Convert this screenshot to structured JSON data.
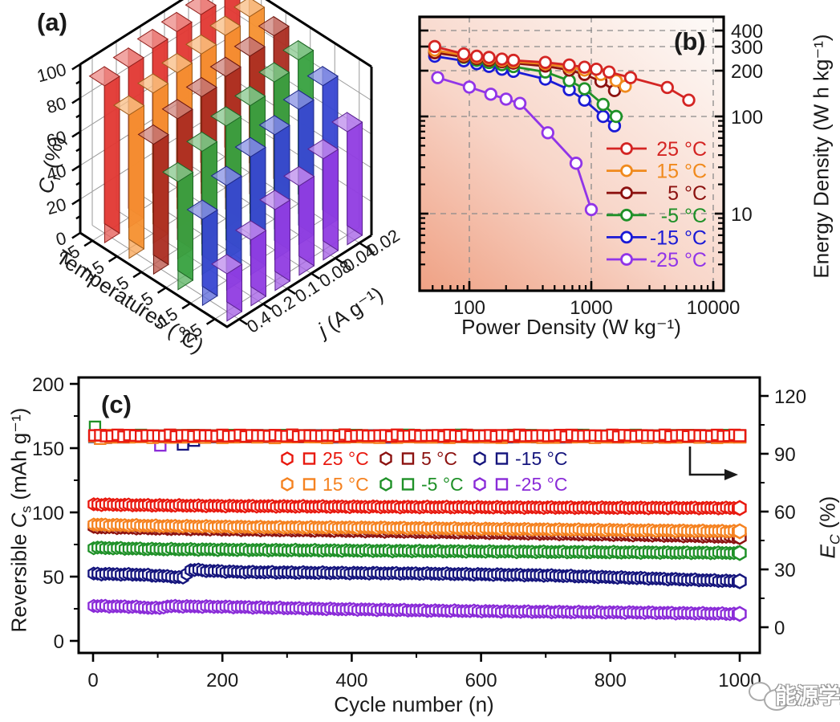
{
  "watermark": {
    "text": "能源学人"
  },
  "chart_data": [
    {
      "id": "a",
      "type": "bar",
      "subtype": "bar3d",
      "label": "(a)",
      "z_axis": {
        "symbol": "C",
        "subscript": "r",
        "unit": " (%)",
        "ticks": [
          0,
          20,
          40,
          60,
          80,
          100
        ],
        "max": 100
      },
      "temp_axis": {
        "title": "Temperatures (°C)",
        "categories": [
          "25",
          "15",
          "5",
          "-5",
          "-15",
          "-25"
        ]
      },
      "j_axis": {
        "italic": "j",
        "rest": " (A g⁻¹)",
        "categories": [
          "0.02",
          "0.04",
          "0.08",
          "0.1",
          "0.2",
          "0.4"
        ]
      },
      "series": [
        {
          "name": "25 °C",
          "color": "#e0302a",
          "values": [
            100,
            99,
            98,
            97,
            95,
            93
          ]
        },
        {
          "name": "15 °C",
          "color": "#f58c28",
          "values": [
            98,
            96,
            94,
            92,
            89,
            85
          ]
        },
        {
          "name": "5 °C",
          "color": "#a82418",
          "values": [
            96,
            93,
            90,
            87,
            83,
            77
          ]
        },
        {
          "name": "-5 °C",
          "color": "#2f9e38",
          "values": [
            91,
            87,
            82,
            79,
            73,
            64
          ]
        },
        {
          "name": "-15 °C",
          "color": "#2f3fd0",
          "values": [
            85,
            80,
            74,
            70,
            62,
            51
          ]
        },
        {
          "name": "-25 °C",
          "color": "#8c35e0",
          "values": [
            67,
            60,
            53,
            48,
            39,
            28
          ]
        }
      ]
    },
    {
      "id": "b",
      "type": "line",
      "label": "(b)",
      "xlabel": "Power Density  (W kg⁻¹)",
      "ylabel": "Energy Density  (W h kg⁻¹)",
      "x_ticks": [
        100,
        1000,
        10000
      ],
      "y_ticks": [
        400,
        300,
        200,
        100,
        10
      ],
      "xlim": [
        39,
        12200
      ],
      "ylim": [
        2.2,
        525
      ],
      "scale": "log-log",
      "grid": "dashed",
      "legend_position": "right-middle",
      "series": [
        {
          "name": "25 °C",
          "color": "#d42523",
          "points": [
            [
              52,
              300
            ],
            [
              90,
              265
            ],
            [
              115,
              255
            ],
            [
              145,
              250
            ],
            [
              185,
              243
            ],
            [
              230,
              238
            ],
            [
              420,
              230
            ],
            [
              660,
              220
            ],
            [
              880,
              212
            ],
            [
              1100,
              205
            ],
            [
              1400,
              196
            ],
            [
              2100,
              180
            ],
            [
              4200,
              155
            ],
            [
              6300,
              128
            ]
          ]
        },
        {
          "name": "15 °C",
          "color": "#f08a1d",
          "points": [
            [
              52,
              282
            ],
            [
              90,
              260
            ],
            [
              115,
              251
            ],
            [
              145,
              245
            ],
            [
              185,
              238
            ],
            [
              230,
              233
            ],
            [
              420,
              224
            ],
            [
              660,
              212
            ],
            [
              880,
              202
            ],
            [
              1200,
              189
            ],
            [
              1600,
              172
            ],
            [
              1900,
              158
            ]
          ]
        },
        {
          "name": "5 °C",
          "color": "#8c1210",
          "points": [
            [
              52,
              270
            ],
            [
              90,
              253
            ],
            [
              115,
              245
            ],
            [
              145,
              238
            ],
            [
              185,
              232
            ],
            [
              230,
              227
            ],
            [
              420,
              216
            ],
            [
              660,
              202
            ],
            [
              880,
              189
            ],
            [
              1200,
              170
            ],
            [
              1550,
              148
            ]
          ]
        },
        {
          "name": "-5 °C",
          "color": "#1f9128",
          "points": [
            [
              52,
              276
            ],
            [
              90,
              250
            ],
            [
              115,
              238
            ],
            [
              145,
              229
            ],
            [
              185,
              221
            ],
            [
              230,
              214
            ],
            [
              420,
              196
            ],
            [
              660,
              172
            ],
            [
              880,
              152
            ],
            [
              1250,
              120
            ],
            [
              1600,
              100
            ]
          ]
        },
        {
          "name": "-15 °C",
          "color": "#1a1ad6",
          "points": [
            [
              52,
              255
            ],
            [
              90,
              236
            ],
            [
              115,
              225
            ],
            [
              145,
              215
            ],
            [
              185,
              205
            ],
            [
              230,
              198
            ],
            [
              420,
              176
            ],
            [
              660,
              150
            ],
            [
              880,
              128
            ],
            [
              1250,
              100
            ],
            [
              1550,
              80
            ]
          ]
        },
        {
          "name": "-25 °C",
          "color": "#9135e8",
          "points": [
            [
              55,
              180
            ],
            [
              100,
              156
            ],
            [
              150,
              140
            ],
            [
              200,
              130
            ],
            [
              260,
              122
            ],
            [
              440,
              68
            ],
            [
              750,
              33
            ],
            [
              1000,
              11
            ]
          ]
        }
      ]
    },
    {
      "id": "c",
      "type": "scatter",
      "label": "(c)",
      "xlabel": "Cycle number (n)",
      "x_ticks": [
        0,
        200,
        400,
        600,
        800,
        1000
      ],
      "xlim": [
        0,
        1000
      ],
      "left_axis": {
        "pre": "Reversible ",
        "symbol": "C",
        "subscript": "s",
        "unit": " (mAh g⁻¹)",
        "ticks": [
          0,
          50,
          100,
          150,
          200
        ],
        "max": 200
      },
      "right_axis": {
        "symbol": "E",
        "subscript": "C",
        "unit": " (%)",
        "ticks": [
          0,
          30,
          60,
          90,
          120
        ],
        "max": 120
      },
      "series": [
        {
          "name": "25 °C",
          "color": "#e8190f",
          "capacity": [
            [
              1,
              106.2
            ],
            [
              80,
              105.6
            ],
            [
              200,
              105
            ],
            [
              400,
              104.4
            ],
            [
              600,
              104
            ],
            [
              800,
              103.6
            ],
            [
              1000,
              103.4
            ]
          ],
          "efficiency": 99.4,
          "eff_outliers": []
        },
        {
          "name": "15 °C",
          "color": "#f58220",
          "capacity": [
            [
              1,
              90.5
            ],
            [
              100,
              89.5
            ],
            [
              250,
              88.6
            ],
            [
              450,
              88
            ],
            [
              650,
              87
            ],
            [
              850,
              86
            ],
            [
              1000,
              85.3
            ]
          ],
          "efficiency": 98.7,
          "eff_outliers": []
        },
        {
          "name": "5 °C",
          "color": "#8c1210",
          "capacity": [
            [
              1,
              88.5
            ],
            [
              100,
              87.4
            ],
            [
              250,
              86.4
            ],
            [
              450,
              85.3
            ],
            [
              650,
              83.8
            ],
            [
              850,
              82.3
            ],
            [
              1000,
              80.8
            ]
          ],
          "efficiency": 99.1,
          "eff_outliers": []
        },
        {
          "name": "-5 °C",
          "color": "#1f9128",
          "capacity": [
            [
              1,
              72.5
            ],
            [
              100,
              71.4
            ],
            [
              300,
              70.6
            ],
            [
              600,
              69.6
            ],
            [
              800,
              69
            ],
            [
              1000,
              68.4
            ]
          ],
          "efficiency": 99.3,
          "eff_outliers": [
            [
              3,
              104
            ]
          ]
        },
        {
          "name": "-15 °C",
          "color": "#15157d",
          "capacity": [
            [
              1,
              52.2
            ],
            [
              70,
              51.6
            ],
            [
              125,
              50
            ],
            [
              138,
              48.8
            ],
            [
              152,
              55.6
            ],
            [
              175,
              54.6
            ],
            [
              230,
              53.6
            ],
            [
              350,
              53
            ],
            [
              520,
              52.4
            ],
            [
              700,
              51
            ],
            [
              850,
              48.8
            ],
            [
              1000,
              46.4
            ]
          ],
          "efficiency": 99.0,
          "eff_outliers": [
            [
              139,
              94.8
            ],
            [
              156,
              96.8
            ]
          ]
        },
        {
          "name": "-25 °C",
          "color": "#8a2bd8",
          "capacity": [
            [
              1,
              27.2
            ],
            [
              60,
              26.6
            ],
            [
              100,
              25.4
            ],
            [
              118,
              27
            ],
            [
              220,
              26.4
            ],
            [
              350,
              25
            ],
            [
              520,
              23.6
            ],
            [
              700,
              22.6
            ],
            [
              850,
              22
            ],
            [
              1000,
              21
            ]
          ],
          "efficiency": 98.9,
          "eff_outliers": [
            [
              104,
              94.3
            ]
          ]
        }
      ]
    }
  ]
}
